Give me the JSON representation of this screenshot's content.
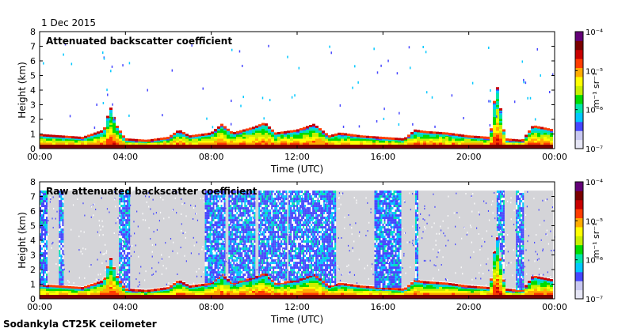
{
  "header": {
    "date": "1 Dec 2015",
    "instrument": "Sodankyla CT25K ceilometer"
  },
  "colors": {
    "colormap": [
      "#e6e6f5",
      "#c8c8f0",
      "#4646ff",
      "#00c8ff",
      "#00e6aa",
      "#00dc00",
      "#c8f000",
      "#ffff00",
      "#ffaa00",
      "#ff3c00",
      "#c80000",
      "#7a0000",
      "#640078"
    ],
    "missing": "#d4d4d8"
  },
  "chart_data": [
    {
      "type": "heatmap",
      "title": "Attenuated backscatter coefficient",
      "xlabel": "Time (UTC)",
      "ylabel": "Height (km)",
      "x_ticks": [
        "00:00",
        "04:00",
        "08:00",
        "12:00",
        "16:00",
        "20:00",
        "00:00"
      ],
      "y_ticks": [
        "0",
        "1",
        "2",
        "3",
        "4",
        "5",
        "6",
        "7",
        "8"
      ],
      "xlim": [
        0,
        24
      ],
      "ylim": [
        0,
        8
      ],
      "variant": "filtered",
      "colorbar": {
        "ticks": [
          "10⁻⁴",
          "10⁻⁵",
          "10⁻⁶",
          "10⁻⁷"
        ],
        "label": "m⁻¹ sr⁻¹",
        "range": [
          -7,
          -4
        ]
      },
      "boundary_layer_top_km": [
        [
          0,
          0.9
        ],
        [
          1,
          0.8
        ],
        [
          2,
          0.7
        ],
        [
          3,
          1.2
        ],
        [
          3.3,
          2.8
        ],
        [
          3.6,
          1.5
        ],
        [
          4,
          0.6
        ],
        [
          5,
          0.5
        ],
        [
          6,
          0.7
        ],
        [
          6.5,
          1.2
        ],
        [
          7,
          0.8
        ],
        [
          8,
          1.0
        ],
        [
          8.5,
          1.6
        ],
        [
          9,
          1.0
        ],
        [
          10,
          1.4
        ],
        [
          10.5,
          1.7
        ],
        [
          11,
          1.0
        ],
        [
          12,
          1.2
        ],
        [
          12.8,
          1.6
        ],
        [
          13.5,
          0.8
        ],
        [
          14,
          1.0
        ],
        [
          15,
          0.8
        ],
        [
          16,
          0.7
        ],
        [
          17,
          0.6
        ],
        [
          17.5,
          1.2
        ],
        [
          18,
          1.1
        ],
        [
          19,
          1.0
        ],
        [
          20,
          0.8
        ],
        [
          21,
          0.7
        ],
        [
          21.3,
          4.5
        ],
        [
          21.7,
          0.6
        ],
        [
          22.5,
          0.5
        ],
        [
          23,
          1.5
        ],
        [
          24,
          1.2
        ]
      ]
    },
    {
      "type": "heatmap",
      "title": "Raw attenuated backscatter coefficient",
      "xlabel": "Time (UTC)",
      "ylabel": "Height (km)",
      "x_ticks": [
        "00:00",
        "04:00",
        "08:00",
        "12:00",
        "16:00",
        "20:00",
        "00:00"
      ],
      "y_ticks": [
        "0",
        "1",
        "2",
        "3",
        "4",
        "5",
        "6",
        "7",
        "8"
      ],
      "xlim": [
        0,
        24
      ],
      "ylim": [
        0,
        8
      ],
      "variant": "raw",
      "colorbar": {
        "ticks": [
          "10⁻⁴",
          "10⁻⁵",
          "10⁻⁶",
          "10⁻⁷"
        ],
        "label": "m⁻¹ sr⁻¹",
        "range": [
          -7,
          -4
        ]
      },
      "noise_columns_hours": [
        [
          0.0,
          0.3
        ],
        [
          0.9,
          1.1
        ],
        [
          3.7,
          4.2
        ],
        [
          7.7,
          8.6
        ],
        [
          8.8,
          10.0
        ],
        [
          10.2,
          11.5
        ],
        [
          11.6,
          13.8
        ],
        [
          15.6,
          16.8
        ],
        [
          17.5,
          17.6
        ],
        [
          21.3,
          21.6
        ],
        [
          22.2,
          22.5
        ]
      ],
      "missing_above_km": 7.4
    }
  ]
}
